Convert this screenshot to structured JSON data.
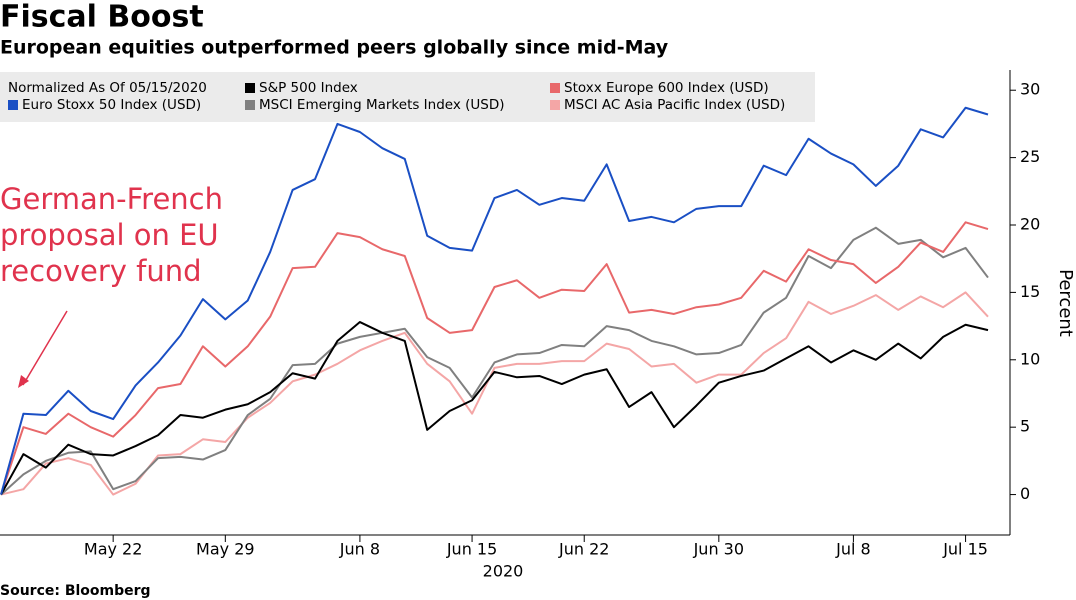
{
  "chart_data": {
    "type": "line",
    "title": "Fiscal Boost",
    "subtitle": "European equities outperformed peers globally since mid-May",
    "source": "Source: Bloomberg",
    "legend_title": "Normalized As Of 05/15/2020",
    "annotation": [
      "German-French",
      "proposal on EU",
      "recovery fund"
    ],
    "annotation_color": "#e0334d",
    "xlabel": "2020",
    "ylabel": "Percent",
    "legend": "top-left",
    "grid": false,
    "x": [
      "2020-05-15",
      "2020-05-18",
      "2020-05-19",
      "2020-05-20",
      "2020-05-21",
      "2020-05-22",
      "2020-05-25",
      "2020-05-26",
      "2020-05-27",
      "2020-05-28",
      "2020-05-29",
      "2020-06-01",
      "2020-06-02",
      "2020-06-03",
      "2020-06-04",
      "2020-06-05",
      "2020-06-08",
      "2020-06-09",
      "2020-06-10",
      "2020-06-11",
      "2020-06-12",
      "2020-06-15",
      "2020-06-16",
      "2020-06-17",
      "2020-06-18",
      "2020-06-19",
      "2020-06-22",
      "2020-06-23",
      "2020-06-24",
      "2020-06-25",
      "2020-06-26",
      "2020-06-29",
      "2020-06-30",
      "2020-07-01",
      "2020-07-02",
      "2020-07-03",
      "2020-07-06",
      "2020-07-07",
      "2020-07-08",
      "2020-07-09",
      "2020-07-10",
      "2020-07-13",
      "2020-07-14",
      "2020-07-15",
      "2020-07-16"
    ],
    "xticks": [
      {
        "value": "2020-05-22",
        "label": "May 22"
      },
      {
        "value": "2020-05-29",
        "label": "May 29"
      },
      {
        "value": "2020-06-08",
        "label": "Jun 8"
      },
      {
        "value": "2020-06-15",
        "label": "Jun 15"
      },
      {
        "value": "2020-06-22",
        "label": "Jun 22"
      },
      {
        "value": "2020-06-30",
        "label": "Jun 30"
      },
      {
        "value": "2020-07-08",
        "label": "Jul 8"
      },
      {
        "value": "2020-07-15",
        "label": "Jul 15"
      }
    ],
    "ylim": [
      -3,
      31.5
    ],
    "yticks": [
      0,
      5,
      10,
      15,
      20,
      25,
      30
    ],
    "series": [
      {
        "name": "S&P 500 Index",
        "color": "#000000",
        "values": [
          0,
          3.0,
          2.0,
          3.7,
          3.0,
          2.9,
          3.6,
          4.4,
          5.9,
          5.7,
          6.3,
          6.7,
          7.6,
          9.0,
          8.6,
          11.4,
          12.8,
          12.0,
          11.4,
          4.8,
          6.2,
          7.0,
          9.1,
          8.7,
          8.8,
          8.2,
          8.9,
          9.3,
          6.5,
          7.6,
          5.0,
          6.6,
          8.3,
          8.8,
          9.2,
          10.1,
          11.0,
          9.8,
          10.7,
          10.0,
          11.2,
          10.1,
          11.7,
          12.6,
          12.2
        ]
      },
      {
        "name": "Stoxx Europe 600 Index (USD)",
        "color": "#e8686a",
        "values": [
          0,
          5.0,
          4.5,
          6.0,
          5.0,
          4.3,
          5.9,
          7.9,
          8.2,
          11.0,
          9.5,
          11.0,
          13.2,
          16.8,
          16.9,
          19.4,
          19.1,
          18.2,
          17.7,
          13.1,
          12.0,
          12.2,
          15.4,
          15.9,
          14.6,
          15.2,
          15.1,
          17.1,
          13.5,
          13.7,
          13.4,
          13.9,
          14.1,
          14.6,
          16.6,
          15.8,
          18.2,
          17.4,
          17.1,
          15.7,
          16.9,
          18.7,
          18.0,
          20.2,
          19.7
        ]
      },
      {
        "name": "Euro Stoxx 50 Index (USD)",
        "color": "#1a4fc4",
        "values": [
          0,
          6.0,
          5.9,
          7.7,
          6.2,
          5.6,
          8.1,
          9.8,
          11.8,
          14.5,
          13.0,
          14.4,
          18.0,
          22.6,
          23.4,
          27.5,
          26.9,
          25.7,
          24.9,
          19.2,
          18.3,
          18.1,
          22.0,
          22.6,
          21.5,
          22.0,
          21.8,
          24.5,
          20.3,
          20.6,
          20.2,
          21.2,
          21.4,
          21.4,
          24.4,
          23.7,
          26.4,
          25.3,
          24.5,
          22.9,
          24.4,
          27.1,
          26.5,
          28.7,
          28.2
        ]
      },
      {
        "name": "MSCI Emerging Markets Index (USD)",
        "color": "#808080",
        "values": [
          0,
          1.5,
          2.5,
          3.1,
          3.2,
          0.4,
          1.0,
          2.7,
          2.8,
          2.6,
          3.3,
          5.9,
          7.1,
          9.6,
          9.7,
          11.2,
          11.7,
          12.0,
          12.3,
          10.2,
          9.4,
          7.2,
          9.8,
          10.4,
          10.5,
          11.1,
          11.0,
          12.5,
          12.2,
          11.4,
          11.0,
          10.4,
          10.5,
          11.1,
          13.5,
          14.6,
          17.7,
          16.8,
          18.9,
          19.8,
          18.6,
          18.9,
          17.6,
          18.3,
          16.1
        ]
      },
      {
        "name": "MSCI AC Asia Pacific Index (USD)",
        "color": "#f4a6a6",
        "values": [
          0,
          0.4,
          2.3,
          2.7,
          2.2,
          0.0,
          0.8,
          2.9,
          3.0,
          4.1,
          3.9,
          5.7,
          6.8,
          8.4,
          8.9,
          9.7,
          10.7,
          11.4,
          12.0,
          9.7,
          8.4,
          6.0,
          9.4,
          9.7,
          9.7,
          9.9,
          9.9,
          11.2,
          10.8,
          9.5,
          9.7,
          8.3,
          8.9,
          8.9,
          10.5,
          11.6,
          14.3,
          13.4,
          14.0,
          14.8,
          13.7,
          14.7,
          13.9,
          15.0,
          13.2
        ]
      }
    ]
  }
}
